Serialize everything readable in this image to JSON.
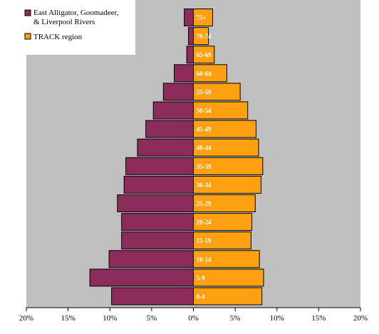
{
  "chart_data": {
    "type": "bar",
    "orientation": "horizontal",
    "title": "",
    "xlabel": "",
    "ylabel": "",
    "xlim": [
      -20,
      20
    ],
    "grid": false,
    "legend_position": "top-left",
    "categories": [
      "0-4",
      "5-9",
      "10-14",
      "15-19",
      "20-24",
      "25-29",
      "30-34",
      "35-39",
      "40-44",
      "45-49",
      "50-54",
      "55-59",
      "60-64",
      "65-69",
      "70-74",
      "75+"
    ],
    "series": [
      {
        "name": "East Alligator, Goomadeer,\n& Liverpool Rivers",
        "side": "left",
        "color": "#8b2c5a",
        "values": [
          9.8,
          12.4,
          10.1,
          8.6,
          8.6,
          9.1,
          8.3,
          8.1,
          6.7,
          5.7,
          4.8,
          3.6,
          2.3,
          0.8,
          0.6,
          1.1
        ]
      },
      {
        "name": "TRACK region",
        "side": "right",
        "color": "#ffa010",
        "values": [
          8.2,
          8.4,
          7.9,
          6.9,
          7.0,
          7.4,
          8.1,
          8.3,
          7.8,
          7.5,
          6.5,
          5.6,
          4.0,
          2.5,
          1.8,
          2.3
        ]
      }
    ],
    "x_ticks": [
      -20,
      -15,
      -10,
      -5,
      0,
      5,
      10,
      15,
      20
    ],
    "x_tick_labels": [
      "20%",
      "15%",
      "10%",
      "5%",
      "0%",
      "5%",
      "10%",
      "15%",
      "20%"
    ],
    "plot_background": "#c0c0c0",
    "label_color": "#ffffff"
  }
}
